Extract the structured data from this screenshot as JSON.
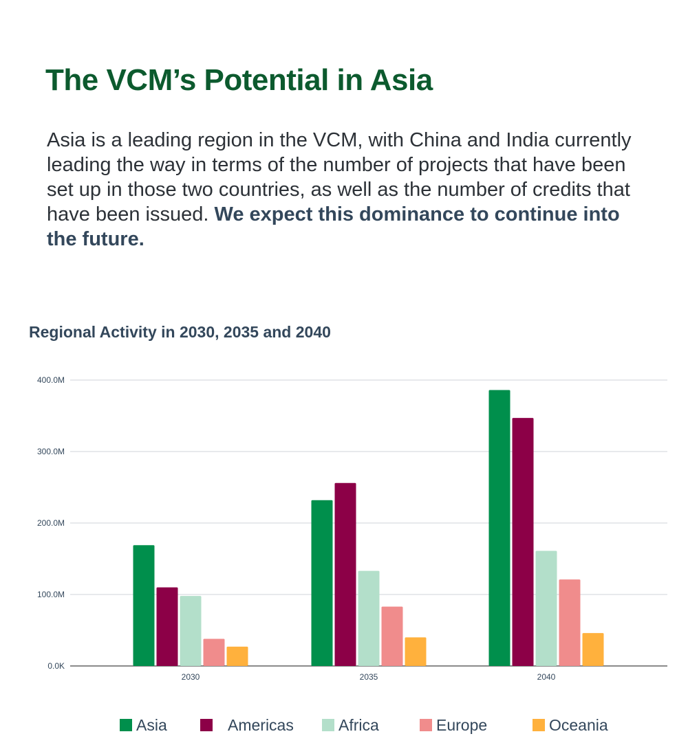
{
  "page": {
    "title": "The VCM’s Potential in Asia",
    "body_text": "Asia is a leading region in the VCM, with China and India currently leading the way in terms of the number of projects that have been set up in those two countries, as well as the number of credits that have been issued.",
    "body_text_bold": "We expect this dominance to continue into the future."
  },
  "chart_data": {
    "type": "bar",
    "title": "Regional Activity in 2030, 2035 and 2040",
    "xlabel": "",
    "ylabel": "",
    "categories": [
      "2030",
      "2035",
      "2040"
    ],
    "ylim": [
      0,
      400
    ],
    "yticks": [
      {
        "value": 0,
        "label": "0.0K"
      },
      {
        "value": 100,
        "label": "100.0M"
      },
      {
        "value": 200,
        "label": "200.0M"
      },
      {
        "value": 300,
        "label": "300.0M"
      },
      {
        "value": 400,
        "label": "400.0M"
      }
    ],
    "grid": true,
    "legend_position": "bottom",
    "series": [
      {
        "name": "Asia",
        "color": "#008f4c",
        "values": [
          169,
          232,
          386
        ]
      },
      {
        "name": "Americas",
        "color": "#8c0047",
        "values": [
          110,
          256,
          347
        ]
      },
      {
        "name": "Africa",
        "color": "#b3dfca",
        "values": [
          98,
          133,
          161
        ]
      },
      {
        "name": "Europe",
        "color": "#f08c8c",
        "values": [
          38,
          83,
          121
        ]
      },
      {
        "name": "Oceania",
        "color": "#ffb13d",
        "values": [
          27,
          40,
          46
        ]
      }
    ]
  }
}
